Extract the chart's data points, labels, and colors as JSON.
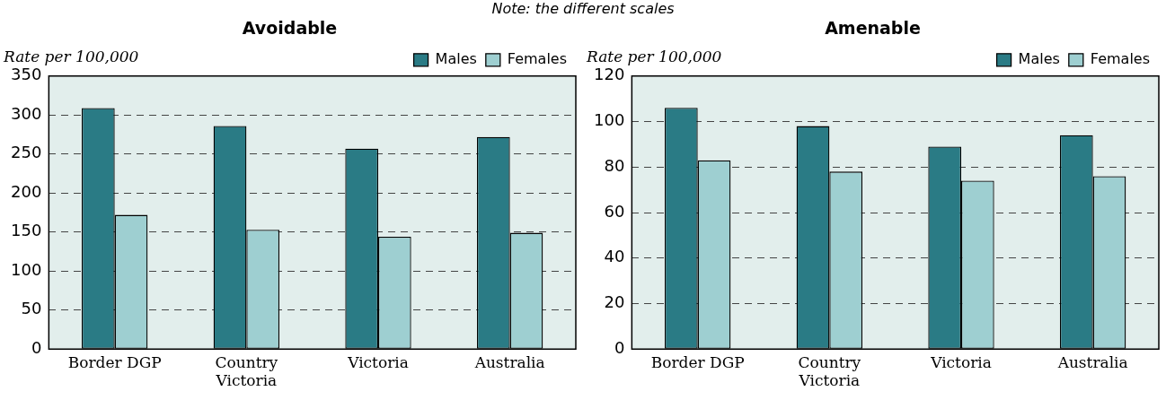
{
  "chart_data": [
    {
      "type": "bar",
      "title": "Avoidable",
      "ylabel": "Rate per 100,000",
      "annotations": [
        "Note: the different scales"
      ],
      "categories": [
        "Border DGP",
        "Country Victoria",
        "Victoria",
        "Australia"
      ],
      "series": [
        {
          "name": "Males",
          "color": "#2a7b85",
          "values": [
            309,
            286,
            257,
            272
          ]
        },
        {
          "name": "Females",
          "color": "#9ecfd1",
          "values": [
            172,
            153,
            144,
            149
          ]
        }
      ],
      "ylim": [
        0,
        350
      ],
      "yticks": [
        0,
        50,
        100,
        150,
        200,
        250,
        300,
        350
      ],
      "grid": "y",
      "legend": "top right"
    },
    {
      "type": "bar",
      "title": "Amenable",
      "ylabel": "Rate per 100,000",
      "categories": [
        "Border DGP",
        "Country Victoria",
        "Victoria",
        "Australia"
      ],
      "series": [
        {
          "name": "Males",
          "color": "#2a7b85",
          "values": [
            106,
            98,
            89,
            94
          ]
        },
        {
          "name": "Females",
          "color": "#9ecfd1",
          "values": [
            83,
            78,
            74,
            76
          ]
        }
      ],
      "ylim": [
        0,
        120
      ],
      "yticks": [
        0,
        20,
        40,
        60,
        80,
        100,
        120
      ],
      "grid": "y",
      "legend": "top right"
    }
  ]
}
